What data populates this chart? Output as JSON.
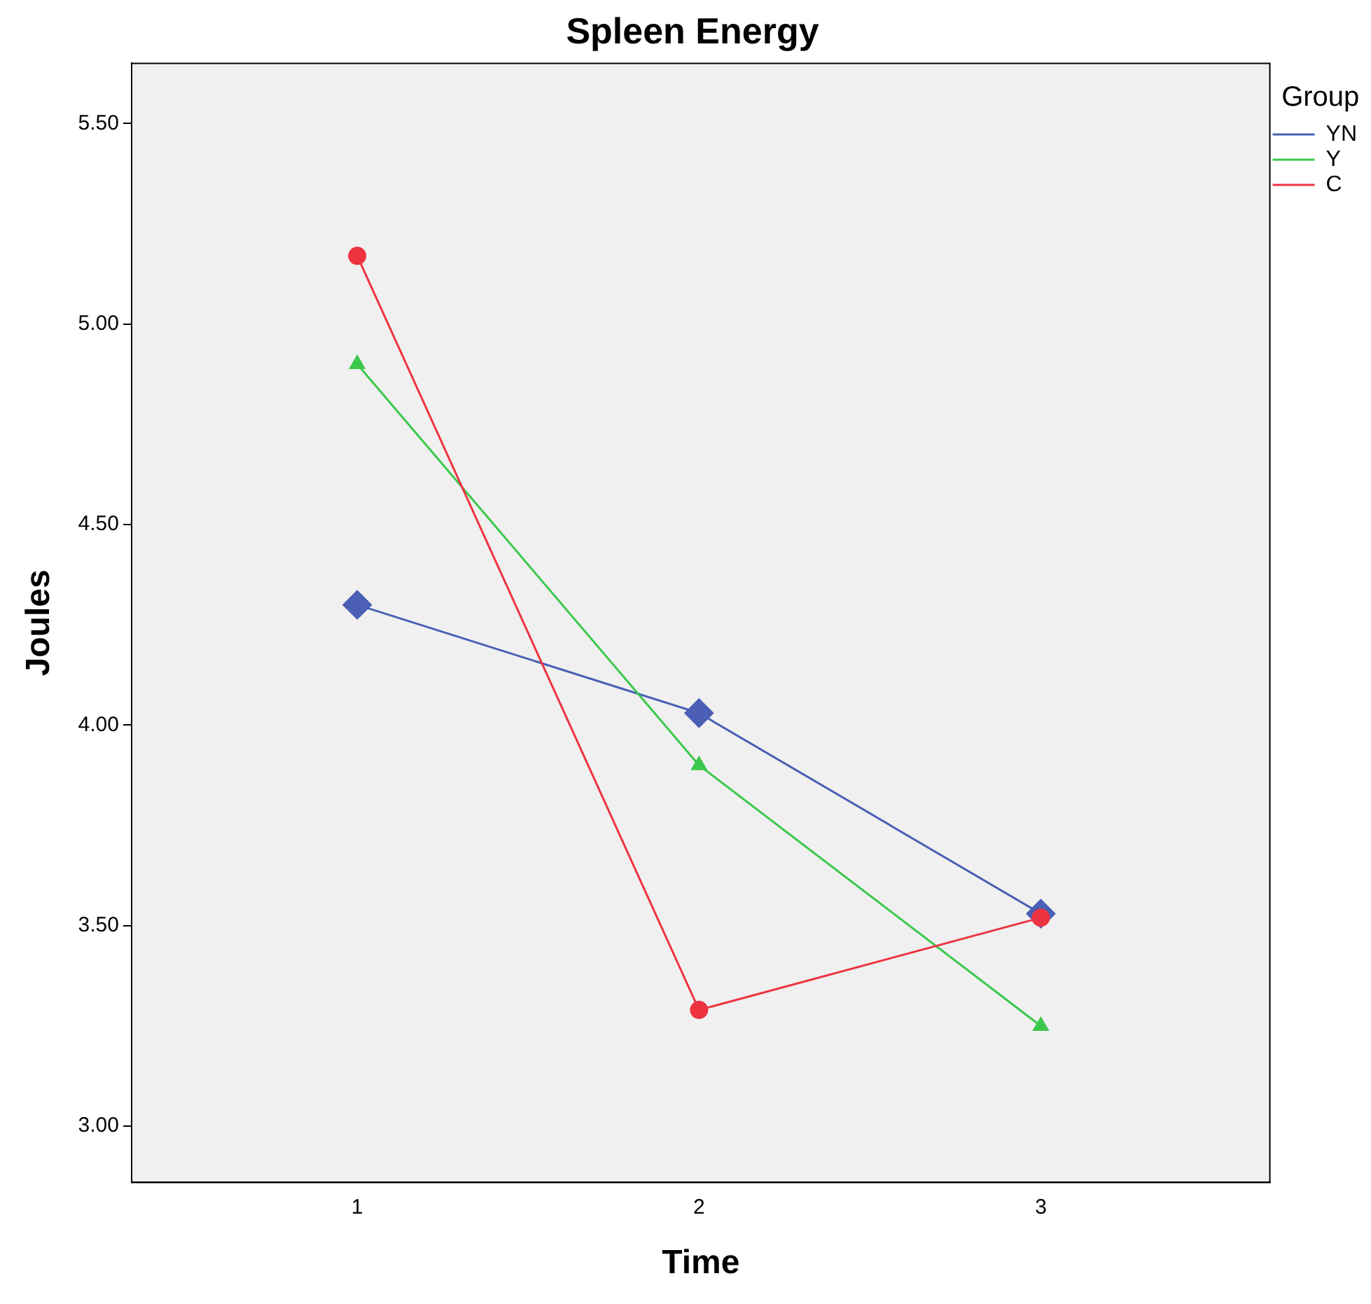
{
  "chart_data": {
    "type": "line",
    "title": "Spleen Energy",
    "xlabel": "Time",
    "ylabel": "Joules",
    "legend_title": "Group",
    "legend": "top right",
    "grid": false,
    "x": [
      1,
      2,
      3
    ],
    "xlim": [
      0.34,
      3.67
    ],
    "xticks": [
      1,
      2,
      3
    ],
    "ylim": [
      2.86,
      5.65
    ],
    "yticks": [
      {
        "value": 3,
        "label": "3.00"
      },
      {
        "value": 3.5,
        "label": "3.50"
      },
      {
        "value": 4,
        "label": "4.00"
      },
      {
        "value": 4.5,
        "label": "4.50"
      },
      {
        "value": 5,
        "label": "5.00"
      },
      {
        "value": 5.5,
        "label": "5.50"
      }
    ],
    "series": [
      {
        "name": "YN",
        "color": "#4a5fb5",
        "marker": "diamond",
        "values": [
          4.3,
          4.03,
          3.53
        ]
      },
      {
        "name": "Y",
        "color": "#3cc84c",
        "marker": "triangle",
        "values": [
          4.9,
          3.9,
          3.25
        ]
      },
      {
        "name": "C",
        "color": "#ee3340",
        "marker": "circle",
        "values": [
          5.17,
          3.29,
          3.52
        ]
      }
    ]
  }
}
